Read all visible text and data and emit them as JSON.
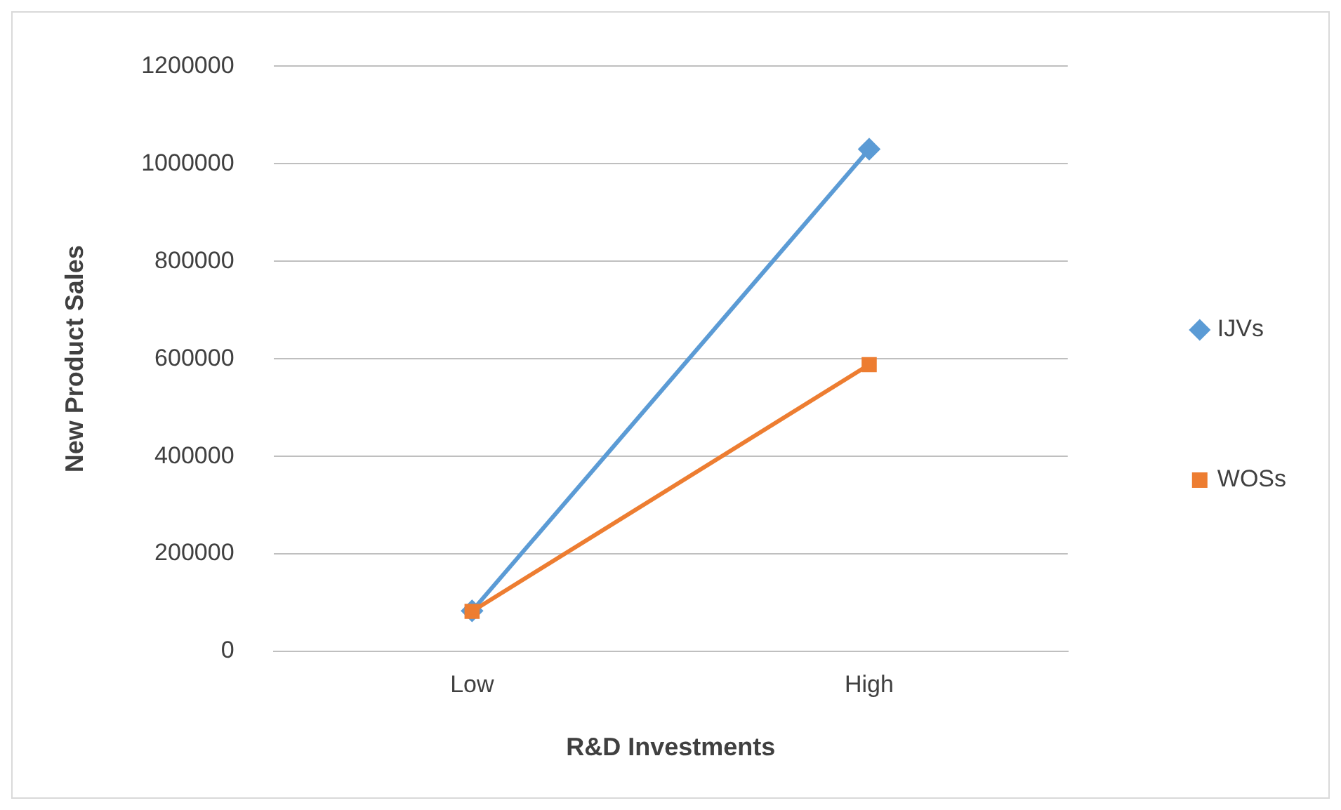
{
  "chart_data": {
    "type": "line",
    "xlabel": "R&D Investments",
    "ylabel": "New Product Sales",
    "categories": [
      "Low",
      "High"
    ],
    "series": [
      {
        "name": "IJVs",
        "color": "#5b9bd5",
        "marker": "diamond",
        "values": [
          83000,
          1030000
        ]
      },
      {
        "name": "WOSs",
        "color": "#ed7d31",
        "marker": "square",
        "values": [
          82000,
          588000
        ]
      }
    ],
    "ylim": [
      0,
      1200000
    ],
    "yticks": [
      0,
      200000,
      400000,
      600000,
      800000,
      1000000,
      1200000
    ],
    "grid": "y",
    "legend": "right",
    "line_style": "solid"
  }
}
